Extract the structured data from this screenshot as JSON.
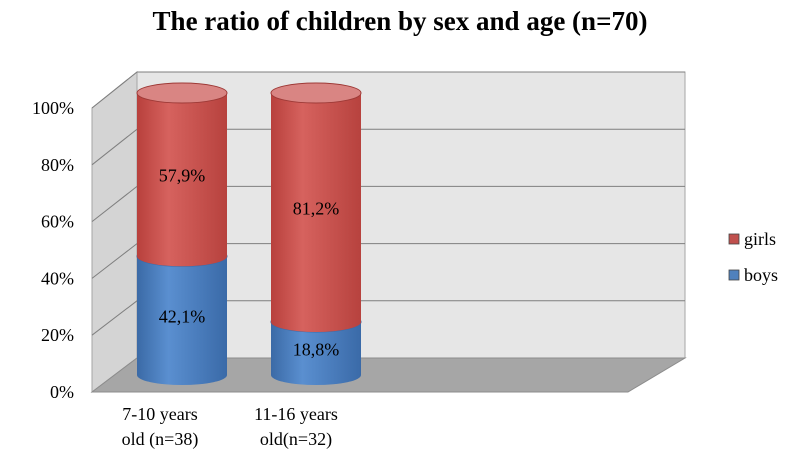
{
  "chart_data": {
    "type": "bar",
    "stacked": true,
    "percent_stacked": true,
    "style": "3d-cylinder",
    "title": "The ratio of children by sex and age (n=70)",
    "categories": [
      "7-10 years old (n=38)",
      "11-16 years old(n=32)"
    ],
    "category_label_lines": [
      [
        "7-10 years",
        "old (n=38)"
      ],
      [
        "11-16 years",
        "old(n=32)"
      ]
    ],
    "series": [
      {
        "name": "boys",
        "values": [
          42.1,
          18.8
        ],
        "labels": [
          "42,1%",
          "18,8%"
        ],
        "color": "#4f81bd"
      },
      {
        "name": "girls",
        "values": [
          57.9,
          81.2
        ],
        "labels": [
          "57,9%",
          "81,2%"
        ],
        "color": "#c0504d"
      }
    ],
    "ylim": [
      0,
      100
    ],
    "yticks": [
      "0%",
      "20%",
      "40%",
      "60%",
      "80%",
      "100%"
    ],
    "grid": true,
    "legend_position": "right"
  }
}
